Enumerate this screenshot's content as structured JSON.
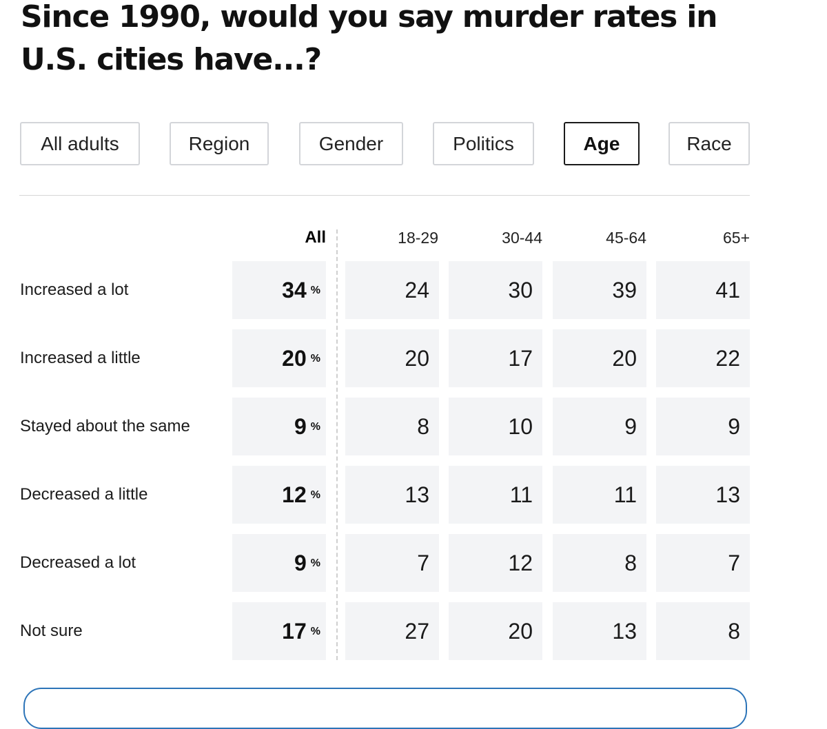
{
  "title": "Since 1990, would you say murder rates in U.S. cities have...?",
  "tabs": [
    {
      "label": "All adults",
      "active": false
    },
    {
      "label": "Region",
      "active": false
    },
    {
      "label": "Gender",
      "active": false
    },
    {
      "label": "Politics",
      "active": false
    },
    {
      "label": "Age",
      "active": true
    },
    {
      "label": "Race",
      "active": false
    }
  ],
  "colors": {
    "cell_bg": "#f3f4f6",
    "active_border": "#1a1a1a",
    "border": "#d3d5d9",
    "bottom_accent": "#2c74b8"
  },
  "chart_data": {
    "type": "table",
    "title": "Since 1990, would you say murder rates in U.S. cities have...?",
    "columns": [
      "All",
      "18-29",
      "30-44",
      "45-64",
      "65+"
    ],
    "percent_marker": "%",
    "rows": [
      {
        "label": "Increased a lot",
        "all": "34",
        "values": [
          "24",
          "30",
          "39",
          "41"
        ]
      },
      {
        "label": "Increased a little",
        "all": "20",
        "values": [
          "20",
          "17",
          "20",
          "22"
        ]
      },
      {
        "label": "Stayed about the same",
        "all": "9",
        "values": [
          "8",
          "10",
          "9",
          "9"
        ]
      },
      {
        "label": "Decreased a little",
        "all": "12",
        "values": [
          "13",
          "11",
          "11",
          "13"
        ]
      },
      {
        "label": "Decreased a lot",
        "all": "9",
        "values": [
          "7",
          "12",
          "8",
          "7"
        ]
      },
      {
        "label": "Not sure",
        "all": "17",
        "values": [
          "27",
          "20",
          "13",
          "8"
        ]
      }
    ]
  }
}
